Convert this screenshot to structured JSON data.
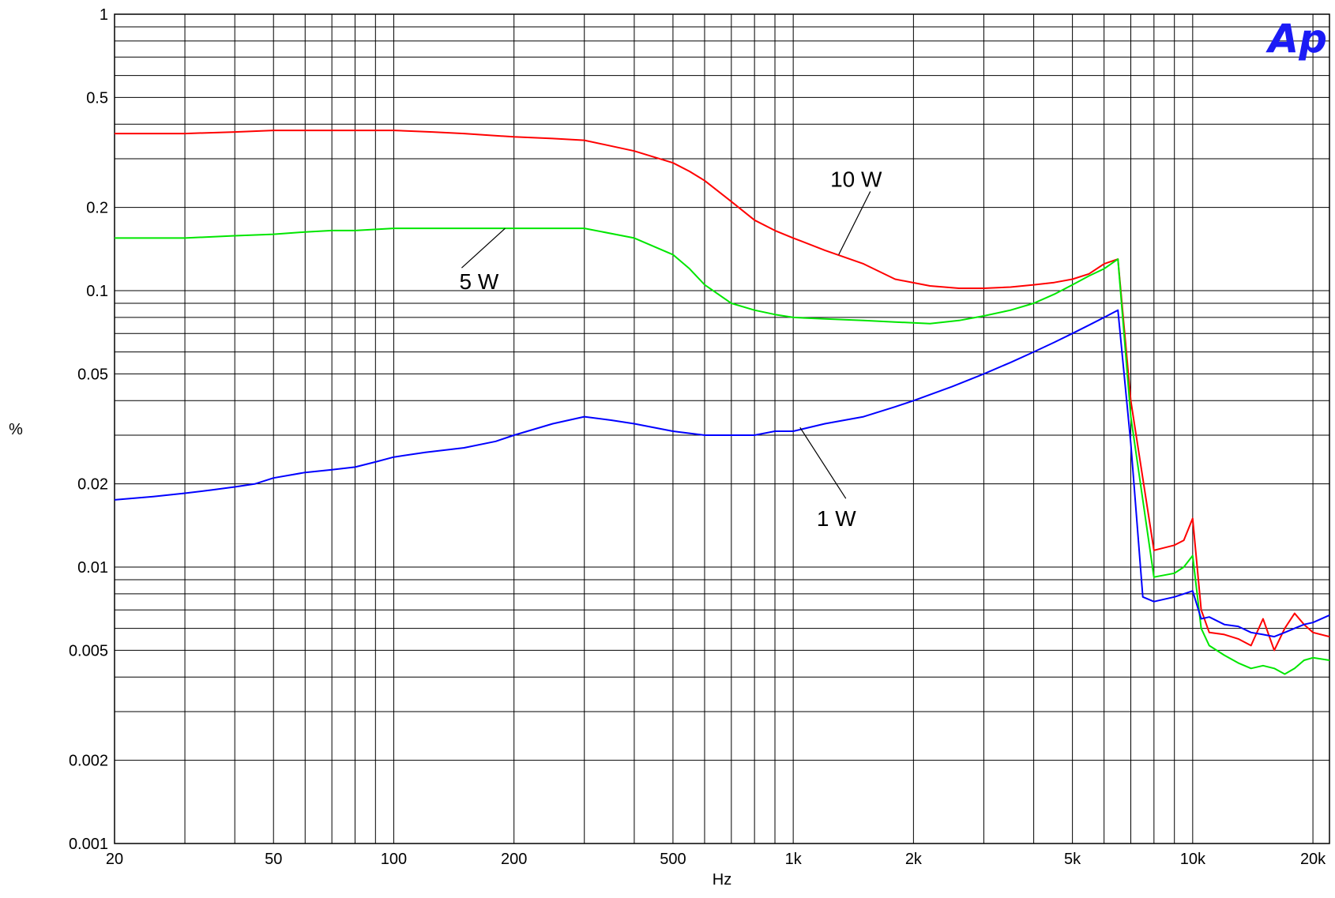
{
  "chart_data": {
    "type": "line",
    "title": "",
    "xlabel": "Hz",
    "ylabel": "%",
    "x_scale": "log",
    "y_scale": "log",
    "xlim": [
      20,
      22000
    ],
    "ylim": [
      0.001,
      1
    ],
    "grid": true,
    "logo": "Ap",
    "x_tick_labels": [
      {
        "value": 20,
        "label": "20"
      },
      {
        "value": 50,
        "label": "50"
      },
      {
        "value": 100,
        "label": "100"
      },
      {
        "value": 200,
        "label": "200"
      },
      {
        "value": 500,
        "label": "500"
      },
      {
        "value": 1000,
        "label": "1k"
      },
      {
        "value": 2000,
        "label": "2k"
      },
      {
        "value": 5000,
        "label": "5k"
      },
      {
        "value": 10000,
        "label": "10k"
      },
      {
        "value": 20000,
        "label": "20k"
      }
    ],
    "y_tick_labels": [
      {
        "value": 1,
        "label": "1"
      },
      {
        "value": 0.5,
        "label": "0.5"
      },
      {
        "value": 0.2,
        "label": "0.2"
      },
      {
        "value": 0.1,
        "label": "0.1"
      },
      {
        "value": 0.05,
        "label": "0.05"
      },
      {
        "value": 0.02,
        "label": "0.02"
      },
      {
        "value": 0.01,
        "label": "0.01"
      },
      {
        "value": 0.005,
        "label": "0.005"
      },
      {
        "value": 0.002,
        "label": "0.002"
      },
      {
        "value": 0.001,
        "label": "0.001"
      }
    ],
    "series": [
      {
        "name": "10 W",
        "color": "#ff0000",
        "x": [
          20,
          25,
          30,
          40,
          50,
          60,
          80,
          100,
          125,
          150,
          200,
          250,
          300,
          400,
          500,
          550,
          600,
          700,
          800,
          900,
          1000,
          1200,
          1500,
          1800,
          2200,
          2600,
          3000,
          3500,
          4000,
          4500,
          5000,
          5500,
          6000,
          6500,
          7000,
          8000,
          9000,
          9500,
          10000,
          10500,
          11000,
          12000,
          13000,
          14000,
          15000,
          16000,
          17000,
          18000,
          19000,
          20000,
          22000
        ],
        "y": [
          0.37,
          0.37,
          0.37,
          0.375,
          0.38,
          0.38,
          0.38,
          0.38,
          0.375,
          0.37,
          0.36,
          0.355,
          0.35,
          0.32,
          0.29,
          0.27,
          0.25,
          0.21,
          0.18,
          0.165,
          0.155,
          0.14,
          0.125,
          0.11,
          0.104,
          0.102,
          0.102,
          0.103,
          0.105,
          0.107,
          0.11,
          0.115,
          0.125,
          0.13,
          0.04,
          0.0115,
          0.012,
          0.0125,
          0.015,
          0.007,
          0.0058,
          0.0057,
          0.0055,
          0.0052,
          0.0065,
          0.005,
          0.006,
          0.0068,
          0.0062,
          0.0058,
          0.0056
        ]
      },
      {
        "name": "5 W",
        "color": "#00e600",
        "x": [
          20,
          25,
          30,
          40,
          50,
          60,
          70,
          80,
          100,
          125,
          150,
          200,
          250,
          300,
          400,
          500,
          550,
          600,
          700,
          800,
          900,
          1000,
          1200,
          1500,
          1800,
          2200,
          2600,
          3000,
          3500,
          4000,
          4500,
          5000,
          5500,
          6000,
          6500,
          7000,
          8000,
          9000,
          9500,
          10000,
          10500,
          11000,
          12000,
          13000,
          14000,
          15000,
          16000,
          17000,
          18000,
          19000,
          20000,
          22000
        ],
        "y": [
          0.155,
          0.155,
          0.155,
          0.158,
          0.16,
          0.163,
          0.165,
          0.165,
          0.168,
          0.168,
          0.168,
          0.168,
          0.168,
          0.168,
          0.155,
          0.135,
          0.12,
          0.105,
          0.09,
          0.085,
          0.082,
          0.08,
          0.079,
          0.078,
          0.077,
          0.076,
          0.078,
          0.081,
          0.085,
          0.09,
          0.097,
          0.105,
          0.113,
          0.12,
          0.13,
          0.035,
          0.0092,
          0.0095,
          0.01,
          0.011,
          0.006,
          0.0052,
          0.0048,
          0.0045,
          0.0043,
          0.0044,
          0.0043,
          0.0041,
          0.0043,
          0.0046,
          0.0047,
          0.0046
        ]
      },
      {
        "name": "1 W",
        "color": "#0000ff",
        "x": [
          20,
          25,
          30,
          35,
          40,
          45,
          50,
          60,
          70,
          80,
          90,
          100,
          120,
          150,
          180,
          200,
          250,
          300,
          350,
          400,
          500,
          600,
          700,
          800,
          900,
          1000,
          1200,
          1500,
          1800,
          2000,
          2500,
          3000,
          3500,
          4000,
          4500,
          5000,
          5500,
          6000,
          6500,
          7000,
          7500,
          8000,
          9000,
          9500,
          10000,
          10500,
          11000,
          12000,
          13000,
          14000,
          15000,
          16000,
          17000,
          18000,
          19000,
          20000,
          22000
        ],
        "y": [
          0.0175,
          0.018,
          0.0185,
          0.019,
          0.0195,
          0.02,
          0.021,
          0.022,
          0.0225,
          0.023,
          0.024,
          0.025,
          0.026,
          0.027,
          0.0285,
          0.03,
          0.033,
          0.035,
          0.034,
          0.033,
          0.031,
          0.03,
          0.03,
          0.03,
          0.031,
          0.031,
          0.033,
          0.035,
          0.038,
          0.04,
          0.045,
          0.05,
          0.055,
          0.06,
          0.065,
          0.07,
          0.075,
          0.08,
          0.085,
          0.028,
          0.0078,
          0.0075,
          0.0078,
          0.008,
          0.0082,
          0.0065,
          0.0066,
          0.0062,
          0.0061,
          0.0058,
          0.0057,
          0.0056,
          0.0058,
          0.006,
          0.0062,
          0.0063,
          0.0067
        ]
      }
    ],
    "annotations": [
      {
        "text": "10 W",
        "series": "10 W",
        "x": 1300,
        "y": 0.135
      },
      {
        "text": "5 W",
        "series": "5 W",
        "x": 190,
        "y": 0.168
      },
      {
        "text": "1 W",
        "series": "1 W",
        "x": 1040,
        "y": 0.032
      }
    ]
  }
}
